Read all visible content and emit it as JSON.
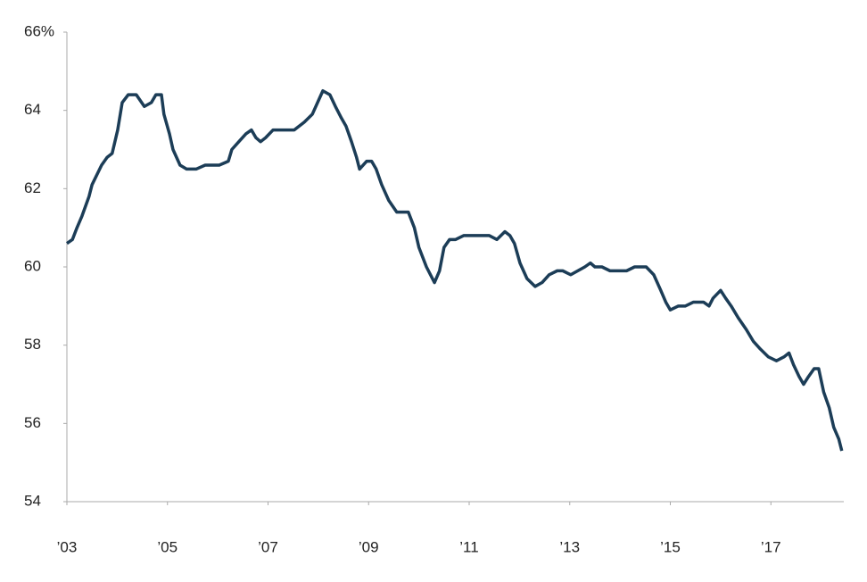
{
  "chart_data": {
    "type": "line",
    "x": [
      2003.0,
      2003.11,
      2003.2,
      2003.3,
      2003.44,
      2003.5,
      2003.69,
      2003.8,
      2003.9,
      2004.01,
      2004.1,
      2004.22,
      2004.38,
      2004.54,
      2004.68,
      2004.77,
      2004.88,
      2004.93,
      2005.04,
      2005.11,
      2005.25,
      2005.38,
      2005.57,
      2005.75,
      2006.03,
      2006.21,
      2006.28,
      2006.42,
      2006.56,
      2006.67,
      2006.76,
      2006.85,
      2006.95,
      2007.1,
      2007.52,
      2007.72,
      2007.88,
      2008.02,
      2008.09,
      2008.23,
      2008.34,
      2008.46,
      2008.55,
      2008.66,
      2008.76,
      2008.82,
      2008.96,
      2009.06,
      2009.15,
      2009.26,
      2009.4,
      2009.56,
      2009.65,
      2009.79,
      2009.91,
      2010.0,
      2010.15,
      2010.31,
      2010.41,
      2010.5,
      2010.61,
      2010.73,
      2010.89,
      2011.07,
      2011.21,
      2011.4,
      2011.55,
      2011.71,
      2011.81,
      2011.9,
      2012.01,
      2012.15,
      2012.31,
      2012.45,
      2012.59,
      2012.75,
      2012.86,
      2013.02,
      2013.16,
      2013.3,
      2013.41,
      2013.5,
      2013.64,
      2013.8,
      2014.13,
      2014.29,
      2014.52,
      2014.67,
      2014.81,
      2014.91,
      2015.0,
      2015.16,
      2015.3,
      2015.46,
      2015.66,
      2015.77,
      2015.85,
      2016.0,
      2016.1,
      2016.21,
      2016.35,
      2016.51,
      2016.65,
      2016.79,
      2016.95,
      2017.11,
      2017.26,
      2017.36,
      2017.45,
      2017.56,
      2017.65,
      2017.75,
      2017.86,
      2017.95,
      2018.05,
      2018.16,
      2018.25,
      2018.35,
      2018.41
    ],
    "values": [
      60.6,
      60.7,
      61.0,
      61.3,
      61.8,
      62.1,
      62.6,
      62.8,
      62.9,
      63.5,
      64.2,
      64.4,
      64.4,
      64.1,
      64.2,
      64.4,
      64.4,
      63.9,
      63.4,
      63.0,
      62.6,
      62.5,
      62.5,
      62.6,
      62.6,
      62.7,
      63.0,
      63.2,
      63.4,
      63.5,
      63.3,
      63.2,
      63.3,
      63.5,
      63.5,
      63.7,
      63.9,
      64.3,
      64.5,
      64.4,
      64.1,
      63.8,
      63.6,
      63.2,
      62.8,
      62.5,
      62.7,
      62.7,
      62.5,
      62.1,
      61.7,
      61.4,
      61.4,
      61.4,
      61.0,
      60.5,
      60.0,
      59.6,
      59.9,
      60.5,
      60.7,
      60.7,
      60.8,
      60.8,
      60.8,
      60.8,
      60.7,
      60.9,
      60.8,
      60.6,
      60.1,
      59.7,
      59.5,
      59.6,
      59.8,
      59.9,
      59.9,
      59.8,
      59.9,
      60.0,
      60.1,
      60.0,
      60.0,
      59.9,
      59.9,
      60.0,
      60.0,
      59.8,
      59.4,
      59.1,
      58.9,
      59.0,
      59.0,
      59.1,
      59.1,
      59.0,
      59.2,
      59.4,
      59.2,
      59.0,
      58.7,
      58.4,
      58.1,
      57.9,
      57.7,
      57.6,
      57.7,
      57.8,
      57.5,
      57.2,
      57.0,
      57.2,
      57.4,
      57.4,
      56.8,
      56.4,
      55.9,
      55.6,
      55.3
    ],
    "color": "#1c3d57",
    "xlim": [
      2003,
      2018.45
    ],
    "xticks": [
      {
        "value": 2003,
        "label": "’03"
      },
      {
        "value": 2005,
        "label": "’05"
      },
      {
        "value": 2007,
        "label": "’07"
      },
      {
        "value": 2009,
        "label": "’09"
      },
      {
        "value": 2011,
        "label": "’11"
      },
      {
        "value": 2013,
        "label": "’13"
      },
      {
        "value": 2015,
        "label": "’15"
      },
      {
        "value": 2017,
        "label": "’17"
      }
    ],
    "ylim": [
      54,
      66
    ],
    "yticks": [
      54,
      56,
      58,
      60,
      62,
      64,
      {
        "value": 66,
        "label": "66%"
      }
    ]
  }
}
